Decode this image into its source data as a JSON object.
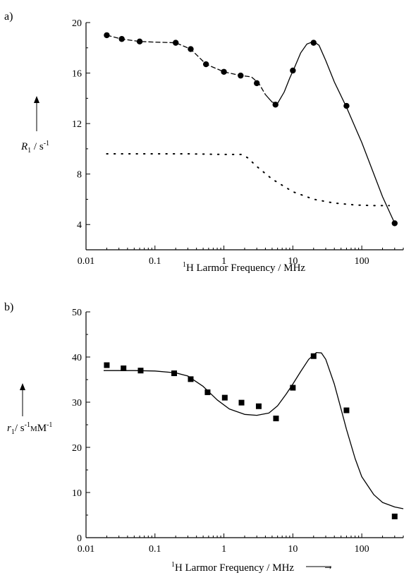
{
  "chart_data": [
    {
      "panel": "a)",
      "type": "scatter",
      "x_scale": "log",
      "xlim": [
        0.01,
        400
      ],
      "ylim": [
        2,
        20
      ],
      "xticks": [
        0.01,
        0.1,
        1,
        10,
        100
      ],
      "xtick_labels": [
        "0.01",
        "0.1",
        "1",
        "10",
        "100"
      ],
      "yticks": [
        4,
        8,
        12,
        16,
        20
      ],
      "ytick_labels": [
        "4",
        "8",
        "12",
        "16",
        "20"
      ],
      "xlabel": {
        "sup": "1",
        "text": "H Larmor Frequency / MHz"
      },
      "ylabel": {
        "var": "R",
        "sub": "1",
        "unit": " / s",
        "sup": "-1"
      },
      "grid": false,
      "marker": "circle",
      "series": [
        {
          "style": "points",
          "x": [
            0.02,
            0.033,
            0.06,
            0.2,
            0.33,
            0.55,
            1.0,
            1.75,
            3.0,
            5.6,
            10,
            20,
            60,
            300
          ],
          "y": [
            19.0,
            18.7,
            18.5,
            18.4,
            17.9,
            16.7,
            16.1,
            15.8,
            15.2,
            13.5,
            16.2,
            18.4,
            13.4,
            4.1
          ]
        },
        {
          "style": "solid-dashed-fit",
          "x": [
            0.02,
            0.033,
            0.06,
            0.1,
            0.2,
            0.33,
            0.55,
            1.0,
            1.75,
            2.5,
            3.2,
            4.0,
            5.0,
            6.0,
            7.5,
            9.0,
            10.5,
            13,
            16,
            20,
            24,
            30,
            40,
            60,
            100,
            200,
            300
          ],
          "y": [
            19.0,
            18.7,
            18.5,
            18.45,
            18.4,
            17.9,
            16.7,
            16.1,
            15.8,
            15.7,
            15.2,
            14.3,
            13.7,
            13.6,
            14.5,
            15.6,
            16.4,
            17.6,
            18.3,
            18.5,
            18.2,
            17.0,
            15.3,
            13.3,
            10.5,
            6.2,
            4.1
          ]
        },
        {
          "style": "dotted",
          "x": [
            0.02,
            0.05,
            0.1,
            0.3,
            1.0,
            1.8,
            2.2,
            3.0,
            5.0,
            10,
            20,
            40,
            80,
            150,
            250
          ],
          "y": [
            9.6,
            9.6,
            9.6,
            9.6,
            9.55,
            9.55,
            9.3,
            8.6,
            7.6,
            6.6,
            6.0,
            5.7,
            5.55,
            5.5,
            5.5
          ]
        }
      ]
    },
    {
      "panel": "b)",
      "type": "scatter",
      "x_scale": "log",
      "xlim": [
        0.01,
        400
      ],
      "ylim": [
        0,
        50
      ],
      "xticks": [
        0.01,
        0.1,
        1,
        10,
        100
      ],
      "xtick_labels": [
        "0.01",
        "0.1",
        "1",
        "10",
        "100"
      ],
      "yticks": [
        0,
        10,
        20,
        30,
        40,
        50
      ],
      "ytick_labels": [
        "0",
        "10",
        "20",
        "30",
        "40",
        "50"
      ],
      "xlabel": {
        "sup": "1",
        "text": "H Larmor Frequency / MHz"
      },
      "ylabel": {
        "var": "r",
        "sub": "1",
        "unit": "/ s",
        "sup": "-1",
        "unit2": "mM",
        "sup2": "-1"
      },
      "grid": false,
      "marker": "square",
      "series": [
        {
          "style": "points",
          "x": [
            0.02,
            0.035,
            0.062,
            0.19,
            0.33,
            0.58,
            1.03,
            1.8,
            3.2,
            5.7,
            10,
            20,
            60,
            300
          ],
          "y": [
            38.2,
            37.5,
            37.0,
            36.4,
            35.1,
            32.2,
            31.0,
            29.9,
            29.1,
            26.4,
            33.2,
            40.2,
            28.2,
            4.7
          ]
        },
        {
          "style": "solid",
          "x": [
            0.018,
            0.05,
            0.1,
            0.2,
            0.3,
            0.5,
            0.8,
            1.2,
            2.0,
            3.0,
            4.5,
            6.0,
            8.0,
            10,
            13,
            17,
            22,
            26,
            30,
            40,
            50,
            60,
            80,
            100,
            150,
            200,
            300,
            400
          ],
          "y": [
            37.0,
            37.0,
            36.9,
            36.5,
            35.8,
            33.5,
            30.5,
            28.5,
            27.3,
            27.1,
            27.6,
            29.2,
            31.8,
            34.0,
            36.8,
            39.5,
            41.0,
            40.9,
            39.5,
            34.0,
            28.5,
            24.0,
            17.5,
            13.5,
            9.5,
            7.8,
            6.8,
            6.4
          ]
        }
      ]
    }
  ],
  "xlabel_arrow": "→",
  "ylabel_arrow": "↑"
}
